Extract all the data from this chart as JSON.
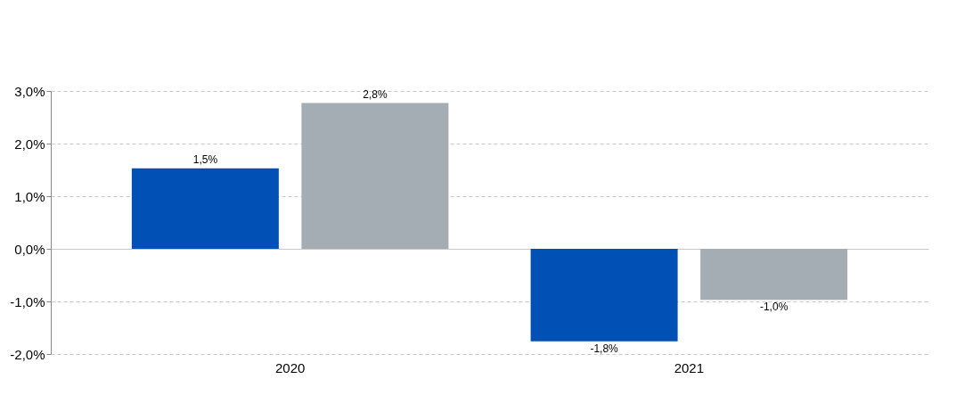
{
  "chart_data": {
    "type": "bar",
    "categories": [
      "2020",
      "2021"
    ],
    "series": [
      {
        "color": "#0050b5",
        "values": [
          1.53,
          -1.76
        ],
        "value_labels": [
          "1,5%",
          "-1,8%"
        ]
      },
      {
        "color": "#a5adb4",
        "values": [
          2.77,
          -0.97
        ],
        "value_labels": [
          "2,8%",
          "-1,0%"
        ]
      }
    ],
    "ylim": [
      -2.0,
      3.0
    ],
    "yticks": [
      {
        "value": -2.0,
        "label": "-2,0%"
      },
      {
        "value": -1.0,
        "label": "-1,0%"
      },
      {
        "value": 0.0,
        "label": "0,0%"
      },
      {
        "value": 1.0,
        "label": "1,0%"
      },
      {
        "value": 2.0,
        "label": "2,0%"
      },
      {
        "value": 3.0,
        "label": "3,0%"
      }
    ],
    "grid": "y",
    "legend": false
  }
}
